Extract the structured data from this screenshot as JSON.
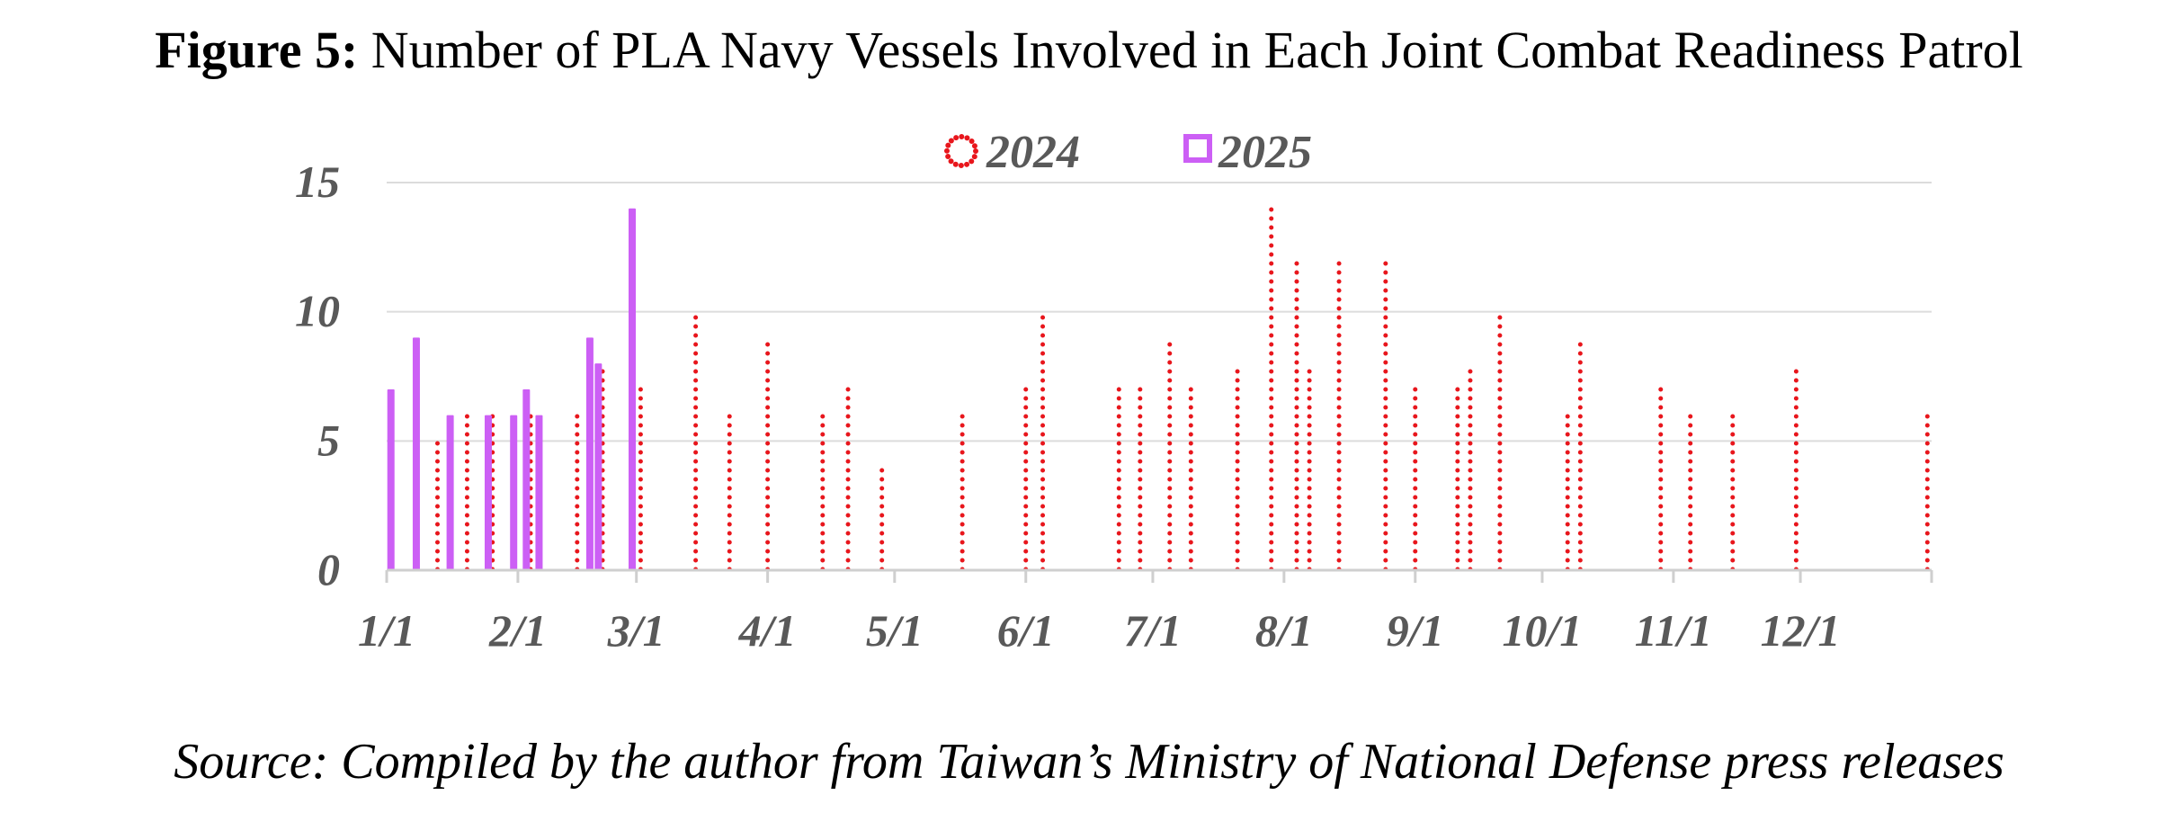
{
  "figure": {
    "label": "Figure 5:",
    "title": "Number of PLA Navy Vessels Involved in Each Joint Combat Readiness Patrol",
    "source": "Source: Compiled by the author from Taiwan’s Ministry of National Defense press releases"
  },
  "chart_data": {
    "type": "bar",
    "title": "Number of PLA Navy Vessels Involved in Each Joint Combat Readiness Patrol",
    "xlabel": "",
    "ylabel": "",
    "x_axis": "date within year (month/day)",
    "xlim": [
      "1/1",
      "12/31"
    ],
    "ylim": [
      0,
      15
    ],
    "y_ticks": [
      0,
      5,
      10,
      15
    ],
    "x_ticks": [
      "1/1",
      "2/1",
      "3/1",
      "4/1",
      "5/1",
      "6/1",
      "7/1",
      "8/1",
      "9/1",
      "10/1",
      "11/1",
      "12/1"
    ],
    "grid": true,
    "legend_position": "top-center",
    "series": [
      {
        "name": "2024",
        "style": "dotted",
        "color": "#e8161c",
        "points": [
          {
            "date": "1/13",
            "value": 5
          },
          {
            "date": "1/20",
            "value": 6
          },
          {
            "date": "1/26",
            "value": 6
          },
          {
            "date": "2/4",
            "value": 6
          },
          {
            "date": "2/15",
            "value": 6
          },
          {
            "date": "2/21",
            "value": 8
          },
          {
            "date": "3/2",
            "value": 7
          },
          {
            "date": "3/15",
            "value": 10
          },
          {
            "date": "3/23",
            "value": 6
          },
          {
            "date": "4/1",
            "value": 9
          },
          {
            "date": "4/14",
            "value": 6
          },
          {
            "date": "4/20",
            "value": 7
          },
          {
            "date": "4/28",
            "value": 4
          },
          {
            "date": "5/17",
            "value": 6
          },
          {
            "date": "6/1",
            "value": 7
          },
          {
            "date": "6/5",
            "value": 10
          },
          {
            "date": "6/23",
            "value": 7
          },
          {
            "date": "6/28",
            "value": 7
          },
          {
            "date": "7/5",
            "value": 9
          },
          {
            "date": "7/10",
            "value": 7
          },
          {
            "date": "7/21",
            "value": 8
          },
          {
            "date": "7/29",
            "value": 14
          },
          {
            "date": "8/4",
            "value": 12
          },
          {
            "date": "8/7",
            "value": 8
          },
          {
            "date": "8/14",
            "value": 12
          },
          {
            "date": "8/25",
            "value": 12
          },
          {
            "date": "9/1",
            "value": 7
          },
          {
            "date": "9/11",
            "value": 7
          },
          {
            "date": "9/14",
            "value": 8
          },
          {
            "date": "9/21",
            "value": 10
          },
          {
            "date": "10/7",
            "value": 6
          },
          {
            "date": "10/10",
            "value": 9
          },
          {
            "date": "10/29",
            "value": 7
          },
          {
            "date": "11/5",
            "value": 6
          },
          {
            "date": "11/15",
            "value": 6
          },
          {
            "date": "11/30",
            "value": 8
          },
          {
            "date": "12/31",
            "value": 6
          }
        ]
      },
      {
        "name": "2025",
        "style": "solid-outline",
        "color": "#cc5ff5",
        "points": [
          {
            "date": "1/2",
            "value": 7
          },
          {
            "date": "1/8",
            "value": 9
          },
          {
            "date": "1/16",
            "value": 6
          },
          {
            "date": "1/25",
            "value": 6
          },
          {
            "date": "1/31",
            "value": 6
          },
          {
            "date": "2/3",
            "value": 7
          },
          {
            "date": "2/6",
            "value": 6
          },
          {
            "date": "2/18",
            "value": 9
          },
          {
            "date": "2/20",
            "value": 8
          },
          {
            "date": "2/28",
            "value": 14
          }
        ]
      }
    ]
  }
}
